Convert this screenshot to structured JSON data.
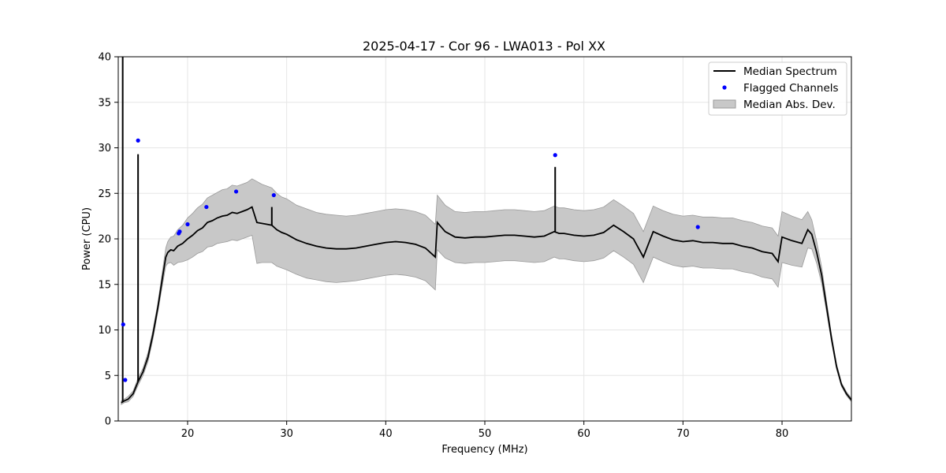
{
  "chart_data": {
    "type": "line",
    "title": "2025-04-17 - Cor 96 - LWA013 - Pol XX",
    "xlabel": "Frequency (MHz)",
    "ylabel": "Power (CPU)",
    "xlim": [
      13,
      87
    ],
    "ylim": [
      0,
      40
    ],
    "x_ticks": [
      20,
      30,
      40,
      50,
      60,
      70,
      80
    ],
    "y_ticks": [
      0,
      5,
      10,
      15,
      20,
      25,
      30,
      35,
      40
    ],
    "grid": true,
    "legend_position": "top-right",
    "legend": [
      "Median Spectrum",
      "Flagged Channels",
      "Median Abs. Dev."
    ],
    "colors": {
      "median": "#000000",
      "flagged": "#0000ff",
      "band": "#c8c8c8",
      "band_edge": "#9a9a9a"
    },
    "series": [
      {
        "name": "Median Spectrum",
        "x": [
          13.3,
          13.6,
          14.0,
          14.5,
          15.0,
          15.5,
          16.0,
          16.5,
          17.0,
          17.5,
          17.8,
          18.0,
          18.3,
          18.6,
          19.0,
          19.5,
          20.0,
          20.5,
          21.0,
          21.5,
          22.0,
          22.5,
          23.0,
          23.5,
          24.0,
          24.5,
          25.0,
          25.5,
          26.0,
          26.5,
          27.0,
          27.5,
          28.0,
          28.5,
          29.0,
          29.5,
          30.0,
          31.0,
          32.0,
          33.0,
          34.0,
          35.0,
          36.0,
          37.0,
          38.0,
          39.0,
          40.0,
          41.0,
          42.0,
          43.0,
          44.0,
          45.0,
          45.2,
          46.0,
          47.0,
          48.0,
          49.0,
          50.0,
          51.0,
          52.0,
          53.0,
          54.0,
          55.0,
          56.0,
          57.0,
          57.5,
          58.0,
          59.0,
          60.0,
          61.0,
          62.0,
          63.0,
          64.0,
          65.0,
          66.0,
          67.0,
          68.0,
          69.0,
          70.0,
          71.0,
          72.0,
          73.0,
          74.0,
          75.0,
          76.0,
          77.0,
          78.0,
          79.0,
          79.6,
          80.0,
          81.0,
          82.0,
          82.6,
          83.0,
          83.5,
          84.0,
          84.5,
          85.0,
          85.5,
          86.0,
          86.5,
          87.0
        ],
        "y": [
          2.0,
          2.2,
          2.4,
          3.0,
          4.3,
          5.4,
          7.0,
          9.5,
          12.5,
          16.0,
          18.0,
          18.5,
          18.8,
          18.7,
          19.2,
          19.5,
          20.0,
          20.4,
          20.9,
          21.2,
          21.8,
          22.0,
          22.3,
          22.5,
          22.6,
          22.9,
          22.8,
          23.0,
          23.2,
          23.5,
          21.8,
          21.7,
          21.6,
          21.5,
          21.0,
          20.7,
          20.5,
          19.9,
          19.5,
          19.2,
          19.0,
          18.9,
          18.9,
          19.0,
          19.2,
          19.4,
          19.6,
          19.7,
          19.6,
          19.4,
          19.0,
          18.0,
          21.8,
          20.8,
          20.2,
          20.1,
          20.2,
          20.2,
          20.3,
          20.4,
          20.4,
          20.3,
          20.2,
          20.3,
          20.8,
          20.6,
          20.6,
          20.4,
          20.3,
          20.4,
          20.7,
          21.5,
          20.8,
          20.0,
          18.0,
          20.8,
          20.3,
          19.9,
          19.7,
          19.8,
          19.6,
          19.6,
          19.5,
          19.5,
          19.2,
          19.0,
          18.6,
          18.4,
          17.5,
          20.2,
          19.8,
          19.5,
          21.0,
          20.5,
          18.5,
          16.0,
          12.5,
          9.0,
          6.0,
          4.0,
          3.0,
          2.3
        ],
        "mad": [
          0.2,
          0.2,
          0.3,
          0.3,
          0.4,
          0.4,
          0.5,
          0.5,
          0.5,
          0.8,
          1.0,
          1.2,
          1.4,
          1.6,
          1.8,
          2.0,
          2.3,
          2.4,
          2.5,
          2.6,
          2.7,
          2.8,
          2.8,
          2.9,
          2.9,
          3.0,
          3.0,
          3.0,
          3.0,
          3.1,
          4.5,
          4.3,
          4.2,
          4.1,
          4.0,
          3.9,
          3.9,
          3.8,
          3.8,
          3.7,
          3.7,
          3.7,
          3.6,
          3.6,
          3.6,
          3.6,
          3.6,
          3.6,
          3.6,
          3.6,
          3.6,
          3.6,
          3.0,
          2.9,
          2.8,
          2.8,
          2.8,
          2.8,
          2.8,
          2.8,
          2.8,
          2.8,
          2.8,
          2.8,
          2.8,
          2.8,
          2.8,
          2.8,
          2.8,
          2.8,
          2.8,
          2.8,
          2.8,
          2.8,
          2.8,
          2.8,
          2.8,
          2.8,
          2.8,
          2.8,
          2.8,
          2.8,
          2.8,
          2.8,
          2.8,
          2.8,
          2.8,
          2.8,
          2.8,
          2.8,
          2.7,
          2.6,
          2.0,
          1.6,
          1.2,
          0.9,
          0.6,
          0.4,
          0.3,
          0.2,
          0.2,
          0.2
        ]
      },
      {
        "name": "Flagged Channels",
        "points": [
          [
            13.5,
            10.6
          ],
          [
            13.7,
            4.5
          ],
          [
            15.0,
            30.8
          ],
          [
            19.1,
            20.6
          ],
          [
            19.2,
            20.8
          ],
          [
            20.0,
            21.6
          ],
          [
            21.9,
            23.5
          ],
          [
            24.9,
            25.2
          ],
          [
            28.7,
            24.8
          ],
          [
            57.1,
            29.2
          ],
          [
            71.5,
            21.3
          ]
        ]
      }
    ],
    "spikes": [
      [
        13.45,
        40.0
      ],
      [
        15.0,
        29.3
      ],
      [
        28.5,
        23.5
      ],
      [
        57.1,
        27.9
      ]
    ]
  }
}
